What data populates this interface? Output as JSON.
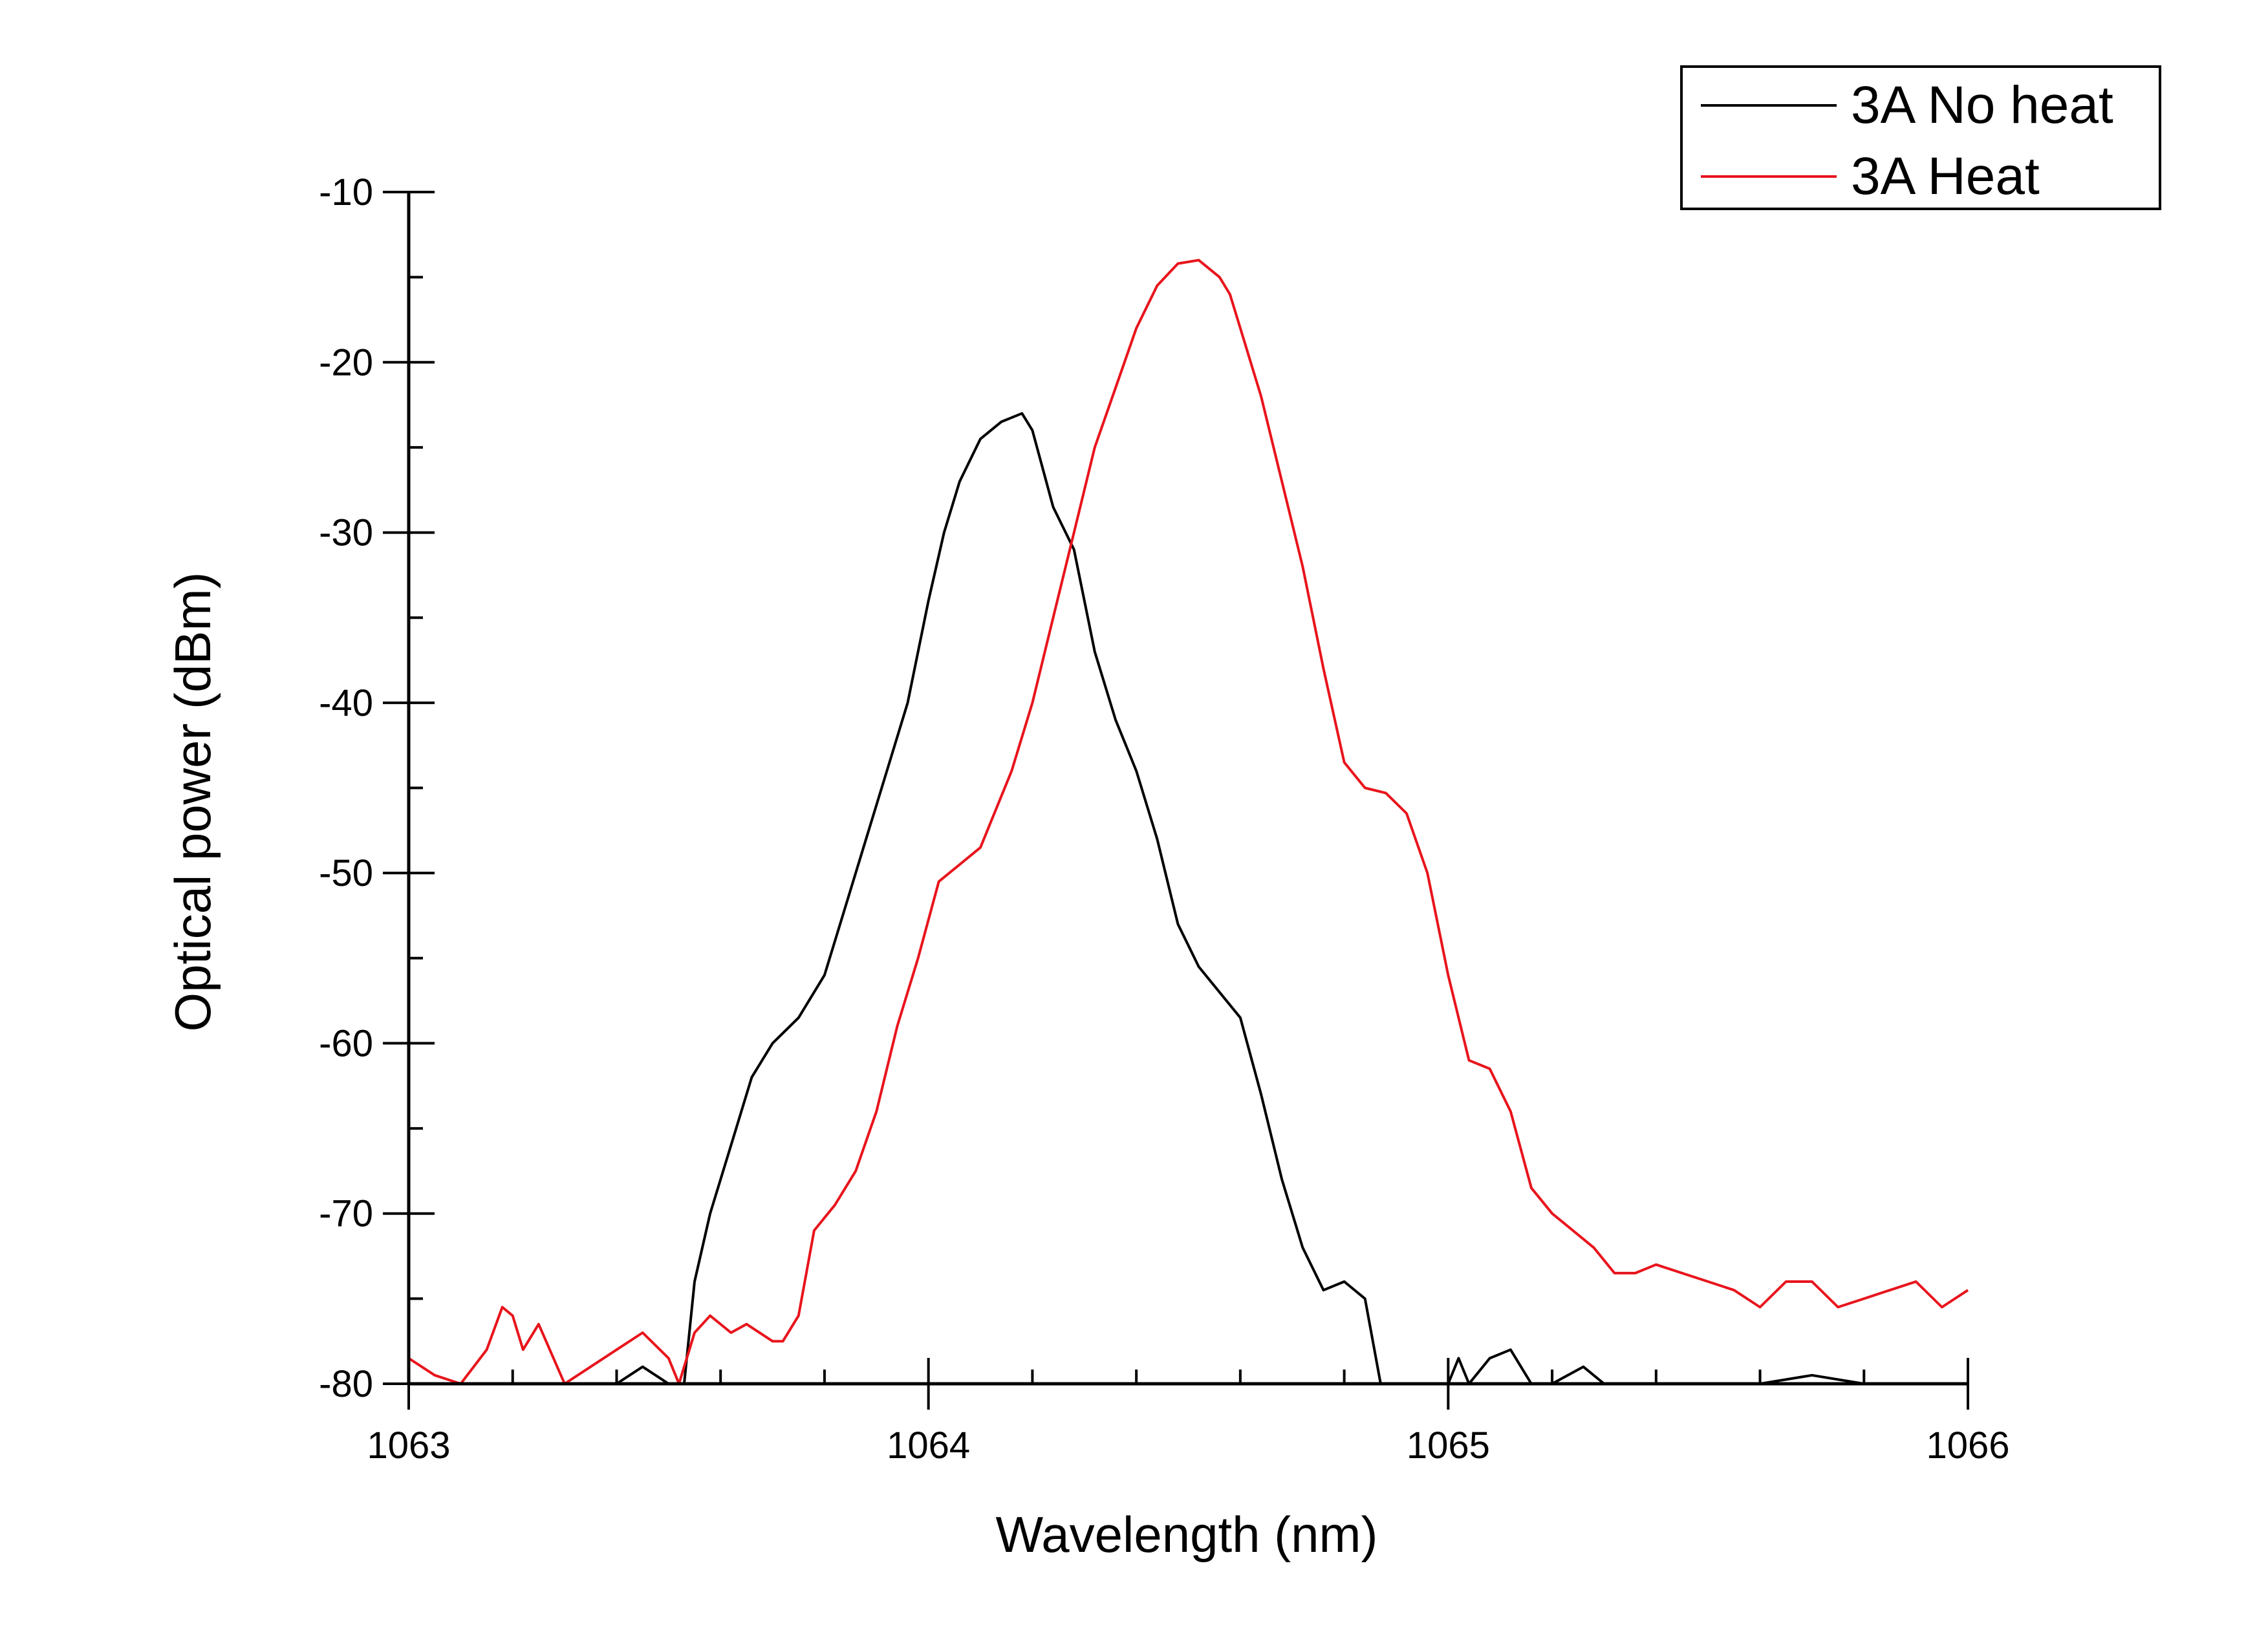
{
  "chart_data": {
    "type": "line",
    "title": "",
    "xlabel": "Wavelength (nm)",
    "ylabel": "Optical power (dBm)",
    "xlim": [
      1063,
      1066
    ],
    "ylim": [
      -80,
      -10
    ],
    "x_ticks": [
      1063,
      1064,
      1065,
      1066
    ],
    "x_tick_labels": [
      "1063",
      "1064",
      "1065",
      "1066"
    ],
    "x_minor_step": 0.2,
    "y_ticks": [
      -80,
      -70,
      -60,
      -50,
      -40,
      -30,
      -20,
      -10
    ],
    "y_tick_labels": [
      "-80",
      "-70",
      "-60",
      "-50",
      "-40",
      "-30",
      "-20",
      "-10"
    ],
    "y_minor_step": 5,
    "grid": false,
    "legend_position": "top-right",
    "series": [
      {
        "name": "3A No heat",
        "color": "#000000",
        "x": [
          1063.0,
          1063.1,
          1063.2,
          1063.3,
          1063.4,
          1063.45,
          1063.5,
          1063.53,
          1063.55,
          1063.58,
          1063.62,
          1063.66,
          1063.7,
          1063.75,
          1063.8,
          1063.84,
          1063.88,
          1063.92,
          1063.96,
          1064.0,
          1064.03,
          1064.06,
          1064.1,
          1064.14,
          1064.18,
          1064.2,
          1064.24,
          1064.28,
          1064.32,
          1064.36,
          1064.4,
          1064.44,
          1064.48,
          1064.52,
          1064.56,
          1064.6,
          1064.64,
          1064.68,
          1064.72,
          1064.76,
          1064.8,
          1064.84,
          1064.87,
          1064.9,
          1064.92,
          1064.96,
          1065.0,
          1065.02,
          1065.04,
          1065.08,
          1065.12,
          1065.16,
          1065.2,
          1065.26,
          1065.3,
          1065.4,
          1065.5,
          1065.6,
          1065.7,
          1065.8,
          1065.9,
          1066.0
        ],
        "y": [
          -80,
          -80,
          -80,
          -80,
          -80,
          -79,
          -80,
          -80,
          -74,
          -70,
          -66,
          -62,
          -60,
          -58.5,
          -56,
          -52,
          -48,
          -44,
          -40,
          -34,
          -30,
          -27,
          -24.5,
          -23.5,
          -23,
          -24,
          -28.5,
          -31,
          -37,
          -41,
          -44,
          -48,
          -53,
          -55.5,
          -57,
          -58.5,
          -63,
          -68,
          -72,
          -74.5,
          -74,
          -75,
          -80,
          -80,
          -80,
          -80,
          -80,
          -78.5,
          -80,
          -78.5,
          -78,
          -80,
          -80,
          -79,
          -80,
          -80,
          -80,
          -80,
          -79.5,
          -80,
          -80,
          -80
        ]
      },
      {
        "name": "3A Heat",
        "color": "#e8141c",
        "x": [
          1063.0,
          1063.05,
          1063.1,
          1063.15,
          1063.18,
          1063.2,
          1063.22,
          1063.25,
          1063.3,
          1063.35,
          1063.4,
          1063.45,
          1063.5,
          1063.52,
          1063.55,
          1063.58,
          1063.62,
          1063.65,
          1063.7,
          1063.72,
          1063.75,
          1063.78,
          1063.82,
          1063.86,
          1063.9,
          1063.94,
          1063.98,
          1064.02,
          1064.06,
          1064.1,
          1064.16,
          1064.2,
          1064.24,
          1064.28,
          1064.32,
          1064.36,
          1064.4,
          1064.44,
          1064.48,
          1064.52,
          1064.56,
          1064.58,
          1064.6,
          1064.64,
          1064.68,
          1064.72,
          1064.76,
          1064.8,
          1064.84,
          1064.88,
          1064.92,
          1064.96,
          1065.0,
          1065.04,
          1065.08,
          1065.12,
          1065.16,
          1065.2,
          1065.24,
          1065.28,
          1065.32,
          1065.36,
          1065.4,
          1065.45,
          1065.5,
          1065.55,
          1065.6,
          1065.65,
          1065.7,
          1065.75,
          1065.8,
          1065.85,
          1065.9,
          1065.95,
          1066.0
        ],
        "y": [
          -78.5,
          -79.5,
          -80,
          -78,
          -75.5,
          -76,
          -78,
          -76.5,
          -80,
          -79,
          -78,
          -77,
          -78.5,
          -80,
          -77,
          -76,
          -77,
          -76.5,
          -77.5,
          -77.5,
          -76,
          -71,
          -69.5,
          -67.5,
          -64,
          -59,
          -55,
          -50.5,
          -49.5,
          -48.5,
          -44,
          -40,
          -35,
          -30,
          -25,
          -21.5,
          -18,
          -15.5,
          -14.2,
          -14,
          -15,
          -16,
          -18,
          -22,
          -27,
          -32,
          -38,
          -43.5,
          -45,
          -45.3,
          -46.5,
          -50,
          -56,
          -61,
          -61.5,
          -64,
          -68.5,
          -70,
          -71,
          -72,
          -73.5,
          -73.5,
          -73,
          -73.5,
          -74,
          -74.5,
          -75.5,
          -74,
          -74,
          -75.5,
          -75,
          -74.5,
          -74,
          -75.5,
          -74.5
        ]
      }
    ]
  }
}
